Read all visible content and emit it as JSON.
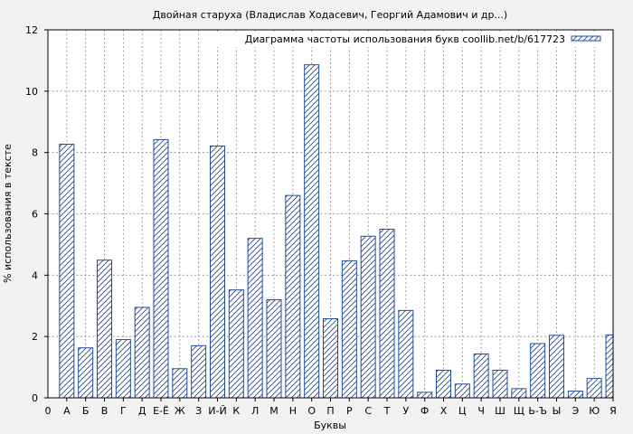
{
  "chart_data": {
    "type": "bar",
    "title": "Двойная старуха (Владислав Ходасевич, Георгий Адамович и др...)",
    "xlabel": "Буквы",
    "ylabel": "% использования в тексте",
    "legend": "Диаграмма частоты использования букв coollib.net/b/617723",
    "legend_position": "top-right",
    "grid": true,
    "ylim": [
      0,
      12
    ],
    "yticks": [
      "0",
      "2",
      "4",
      "6",
      "8",
      "10",
      "12"
    ],
    "x_first_tick": "0",
    "categories": [
      "А",
      "Б",
      "В",
      "Г",
      "Д",
      "Е-Ё",
      "Ж",
      "З",
      "И-Й",
      "К",
      "Л",
      "М",
      "Н",
      "О",
      "П",
      "Р",
      "С",
      "Т",
      "У",
      "Ф",
      "Х",
      "Ц",
      "Ч",
      "Ш",
      "Щ",
      "Ь-Ъ",
      "Ы",
      "Э",
      "Ю",
      "Я"
    ],
    "values": [
      8.27,
      1.63,
      4.49,
      1.9,
      2.95,
      8.42,
      0.95,
      1.7,
      8.21,
      3.52,
      5.2,
      3.2,
      6.6,
      10.86,
      2.58,
      4.47,
      5.27,
      5.5,
      2.85,
      0.18,
      0.9,
      0.45,
      1.43,
      0.9,
      0.3,
      1.77,
      2.04,
      0.22,
      0.63,
      2.05
    ],
    "colors": {
      "bar_stroke": "#1f4fa0",
      "hatch": "#1f4fa0",
      "bar_fill": "#ffffff",
      "background": "#f2f2f2"
    }
  }
}
